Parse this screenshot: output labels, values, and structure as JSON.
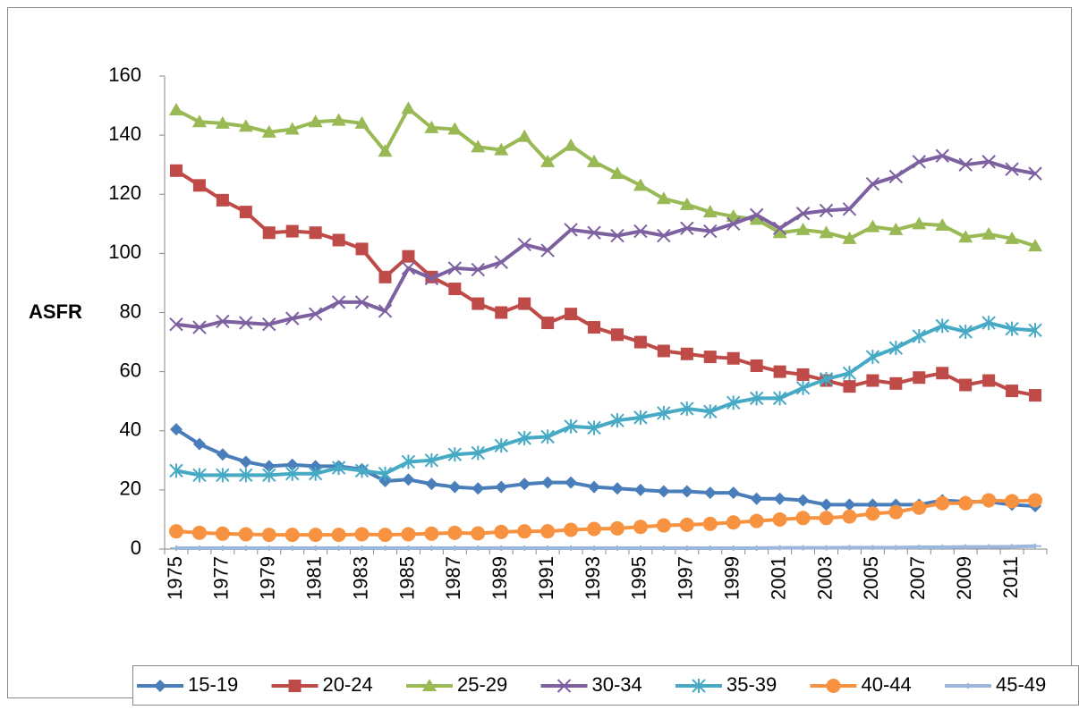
{
  "chart_data": {
    "type": "line",
    "y_label": "ASFR",
    "categories": [
      "1975",
      null,
      "1977",
      null,
      "1979",
      null,
      "1981",
      null,
      "1983",
      null,
      "1985",
      null,
      "1987",
      null,
      "1989",
      null,
      "1991",
      null,
      "1993",
      null,
      "1995",
      null,
      "1997",
      null,
      "1999",
      null,
      "2001",
      null,
      "2003",
      null,
      "2005",
      null,
      "2007",
      null,
      "2009",
      null,
      "2011",
      null
    ],
    "ylim": [
      0,
      160
    ],
    "yticks": [
      0,
      20,
      40,
      60,
      80,
      100,
      120,
      140,
      160
    ],
    "series": [
      {
        "name": "15-19",
        "color": "#4a7ebb",
        "marker": "diamond",
        "values": [
          40.5,
          35.5,
          32,
          29.5,
          28,
          28.5,
          28,
          28,
          27,
          23,
          23.5,
          22,
          21,
          20.5,
          21,
          22,
          22.5,
          22.5,
          21,
          20.5,
          20,
          19.5,
          19.5,
          19,
          19,
          17,
          17,
          16.5,
          15,
          15,
          15,
          15,
          15,
          16.5,
          16,
          16,
          15,
          14.5
        ]
      },
      {
        "name": "20-24",
        "color": "#be4b48",
        "marker": "square",
        "values": [
          128,
          123,
          118,
          114,
          107,
          107.5,
          107,
          104.5,
          101.5,
          92,
          99,
          92,
          88,
          83,
          80,
          83,
          76.5,
          79.5,
          75,
          72.5,
          70,
          67,
          66,
          65,
          64.5,
          62,
          60,
          59,
          57,
          55,
          57,
          56,
          58,
          59.5,
          55.5,
          57,
          53.5,
          52
        ]
      },
      {
        "name": "25-29",
        "color": "#98b954",
        "marker": "triangle",
        "values": [
          148.5,
          144.5,
          144,
          143,
          141,
          142,
          144.5,
          145,
          144,
          134.5,
          149,
          142.5,
          142,
          136,
          135,
          139.5,
          131,
          136.5,
          131,
          127,
          123,
          118.5,
          116.5,
          114,
          112.5,
          111.5,
          107,
          108,
          107,
          105,
          109,
          108,
          110,
          109.5,
          105.5,
          106.5,
          105,
          102.5
        ]
      },
      {
        "name": "30-34",
        "color": "#7d60a0",
        "marker": "x",
        "values": [
          76,
          75,
          77,
          76.5,
          76,
          78,
          79.5,
          83.5,
          83.5,
          80.5,
          95,
          91.5,
          95,
          94.5,
          97,
          103,
          101,
          108,
          107,
          106,
          107.5,
          106,
          108.5,
          107.5,
          110,
          113,
          108.5,
          113.5,
          114.5,
          115,
          123.5,
          126,
          131,
          133,
          130,
          131,
          128.5,
          127
        ]
      },
      {
        "name": "35-39",
        "color": "#46aac5",
        "marker": "star",
        "values": [
          26.5,
          25,
          25,
          25,
          25,
          25.5,
          25.5,
          27.5,
          26.5,
          25.5,
          29.5,
          30,
          32,
          32.5,
          35,
          37.5,
          38,
          41.5,
          41,
          43.5,
          44.5,
          46,
          47.5,
          46.5,
          49.5,
          51,
          51,
          54.5,
          57.5,
          59.5,
          65,
          68,
          72,
          75.5,
          73.5,
          76.5,
          74.5,
          74
        ]
      },
      {
        "name": "40-44",
        "color": "#f69240",
        "marker": "circle",
        "values": [
          6,
          5.5,
          5.2,
          5,
          4.8,
          4.8,
          4.8,
          4.8,
          5,
          4.8,
          5,
          5.2,
          5.5,
          5.3,
          5.8,
          6,
          6,
          6.5,
          6.8,
          7,
          7.5,
          8,
          8.2,
          8.5,
          9,
          9.5,
          10,
          10.5,
          10.5,
          11,
          12,
          12.5,
          14,
          15.5,
          15.5,
          16.5,
          16.2,
          16.5
        ]
      },
      {
        "name": "45-49",
        "color": "#9cb7dc",
        "marker": "plus",
        "values": [
          0.3,
          0.3,
          0.3,
          0.3,
          0.3,
          0.3,
          0.3,
          0.3,
          0.3,
          0.3,
          0.3,
          0.3,
          0.3,
          0.3,
          0.3,
          0.3,
          0.3,
          0.3,
          0.3,
          0.3,
          0.3,
          0.3,
          0.3,
          0.3,
          0.3,
          0.3,
          0.4,
          0.4,
          0.4,
          0.5,
          0.5,
          0.5,
          0.6,
          0.6,
          0.7,
          0.7,
          0.8,
          1
        ]
      }
    ]
  }
}
